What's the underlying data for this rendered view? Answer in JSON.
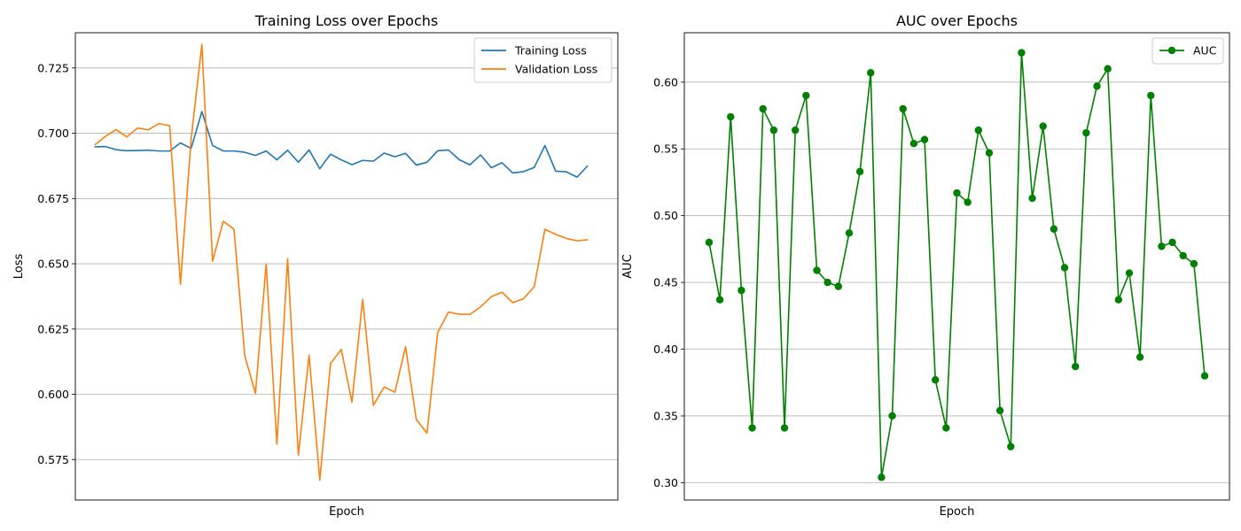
{
  "chart_data": [
    {
      "type": "line",
      "title": "Training Loss over Epochs",
      "xlabel": "Epoch",
      "ylabel": "Loss",
      "xlim": [
        -1.8,
        48.8
      ],
      "ylim": [
        0.5595,
        0.7385
      ],
      "yticks": [
        0.575,
        0.6,
        0.625,
        0.65,
        0.675,
        0.7,
        0.725
      ],
      "ytick_labels": [
        "0.575",
        "0.600",
        "0.625",
        "0.650",
        "0.675",
        "0.700",
        "0.725"
      ],
      "xticks_visible": false,
      "grid": "y",
      "legend": "top-right",
      "x": [
        0,
        1,
        2,
        3,
        4,
        5,
        6,
        7,
        8,
        9,
        10,
        11,
        12,
        13,
        14,
        15,
        16,
        17,
        18,
        19,
        20,
        21,
        22,
        23,
        24,
        25,
        26,
        27,
        28,
        29,
        30,
        31,
        32,
        33,
        34,
        35,
        36,
        37,
        38,
        39,
        40,
        41,
        42,
        43,
        44,
        45,
        46
      ],
      "series": [
        {
          "name": "Training Loss",
          "color": "#1f77b4",
          "marker": "none",
          "values": [
            0.6948,
            0.6949,
            0.6937,
            0.6933,
            0.6934,
            0.6935,
            0.6932,
            0.6932,
            0.6963,
            0.6942,
            0.7083,
            0.6953,
            0.6932,
            0.6932,
            0.6927,
            0.6915,
            0.6932,
            0.6898,
            0.6935,
            0.6889,
            0.6936,
            0.6864,
            0.692,
            0.6898,
            0.688,
            0.6896,
            0.6893,
            0.6924,
            0.691,
            0.6923,
            0.6878,
            0.6889,
            0.6933,
            0.6936,
            0.6899,
            0.6879,
            0.6917,
            0.6868,
            0.6887,
            0.6848,
            0.6853,
            0.6869,
            0.6953,
            0.6855,
            0.6852,
            0.6832,
            0.6876
          ]
        },
        {
          "name": "Validation Loss",
          "color": "#ff7f0e",
          "marker": "none",
          "values": [
            0.6955,
            0.6988,
            0.7014,
            0.6986,
            0.702,
            0.7013,
            0.7037,
            0.7029,
            0.6421,
            0.6978,
            0.734,
            0.651,
            0.6663,
            0.6632,
            0.6148,
            0.6004,
            0.6499,
            0.5809,
            0.6519,
            0.5767,
            0.615,
            0.5671,
            0.6118,
            0.6172,
            0.597,
            0.6364,
            0.5958,
            0.6028,
            0.6008,
            0.6182,
            0.5904,
            0.5851,
            0.6237,
            0.6315,
            0.6307,
            0.6306,
            0.6335,
            0.6374,
            0.6391,
            0.6351,
            0.6366,
            0.6412,
            0.6632,
            0.6613,
            0.6597,
            0.6588,
            0.6592
          ]
        }
      ]
    },
    {
      "type": "line",
      "title": "AUC over Epochs",
      "xlabel": "Epoch",
      "ylabel": "AUC",
      "xlim": [
        -2.3,
        48.3
      ],
      "ylim": [
        0.287,
        0.637
      ],
      "yticks": [
        0.3,
        0.35,
        0.4,
        0.45,
        0.5,
        0.55,
        0.6
      ],
      "ytick_labels": [
        "0.30",
        "0.35",
        "0.40",
        "0.45",
        "0.50",
        "0.55",
        "0.60"
      ],
      "xticks_visible": false,
      "grid": "y",
      "legend": "top-right",
      "x": [
        0,
        1,
        2,
        3,
        4,
        5,
        6,
        7,
        8,
        9,
        10,
        11,
        12,
        13,
        14,
        15,
        16,
        17,
        18,
        19,
        20,
        21,
        22,
        23,
        24,
        25,
        26,
        27,
        28,
        29,
        30,
        31,
        32,
        33,
        34,
        35,
        36,
        37,
        38,
        39,
        40,
        41,
        42,
        43,
        44,
        45,
        46
      ],
      "series": [
        {
          "name": "AUC",
          "color": "#008000",
          "marker": "circle",
          "values": [
            0.48,
            0.437,
            0.574,
            0.444,
            0.341,
            0.58,
            0.564,
            0.341,
            0.564,
            0.59,
            0.459,
            0.45,
            0.447,
            0.487,
            0.533,
            0.607,
            0.304,
            0.35,
            0.58,
            0.554,
            0.557,
            0.377,
            0.341,
            0.517,
            0.51,
            0.564,
            0.547,
            0.354,
            0.327,
            0.622,
            0.513,
            0.567,
            0.49,
            0.461,
            0.387,
            0.562,
            0.597,
            0.61,
            0.437,
            0.457,
            0.394,
            0.59,
            0.477,
            0.48,
            0.47,
            0.464,
            0.38
          ]
        }
      ]
    }
  ]
}
